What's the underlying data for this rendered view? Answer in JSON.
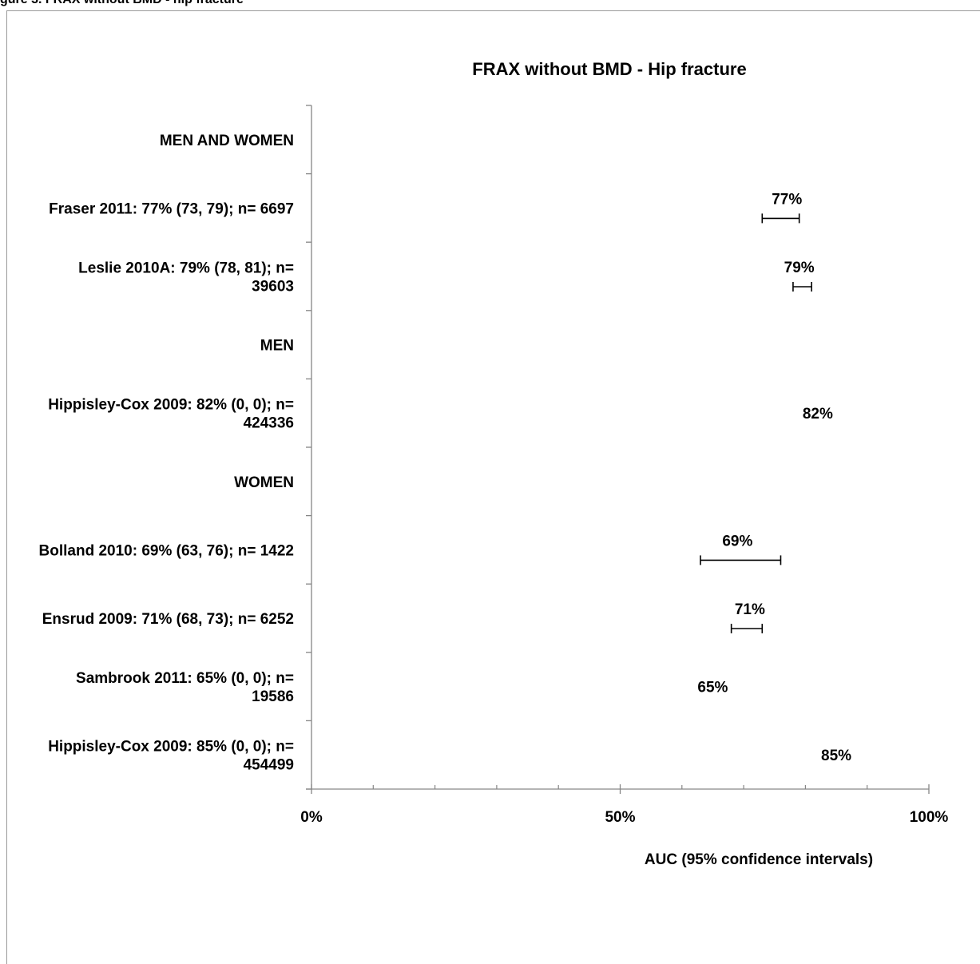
{
  "page_header": "gure 3.    FRAX without BMD - hip fracture",
  "chart_data": {
    "type": "forest",
    "title": "FRAX without BMD - Hip fracture",
    "xlabel": "AUC (95% confidence intervals)",
    "ylabel": "",
    "xlim": [
      0,
      100
    ],
    "x_ticks": [
      {
        "value": 0,
        "label": "0%"
      },
      {
        "value": 50,
        "label": "50%"
      },
      {
        "value": 100,
        "label": "100%"
      }
    ],
    "x_minor_ticks": [
      10,
      20,
      30,
      40,
      60,
      70,
      80,
      90
    ],
    "grid": false,
    "rows": [
      {
        "kind": "group",
        "lines": [
          "MEN AND WOMEN"
        ]
      },
      {
        "kind": "study",
        "lines": [
          "Fraser 2011: 77% (73, 79); n= 6697"
        ],
        "estimate": 77,
        "lower": 73,
        "upper": 79,
        "value_label": "77%"
      },
      {
        "kind": "study",
        "lines": [
          "Leslie 2010A: 79% (78, 81); n=",
          "39603"
        ],
        "estimate": 79,
        "lower": 78,
        "upper": 81,
        "value_label": "79%"
      },
      {
        "kind": "group",
        "lines": [
          "MEN"
        ]
      },
      {
        "kind": "study",
        "lines": [
          "Hippisley-Cox 2009: 82% (0, 0); n=",
          "424336"
        ],
        "estimate": 82,
        "lower": null,
        "upper": null,
        "value_label": "82%"
      },
      {
        "kind": "group",
        "lines": [
          "WOMEN"
        ]
      },
      {
        "kind": "study",
        "lines": [
          "Bolland 2010: 69% (63, 76); n= 1422"
        ],
        "estimate": 69,
        "lower": 63,
        "upper": 76,
        "value_label": "69%"
      },
      {
        "kind": "study",
        "lines": [
          "Ensrud 2009: 71% (68, 73); n= 6252"
        ],
        "estimate": 71,
        "lower": 68,
        "upper": 73,
        "value_label": "71%"
      },
      {
        "kind": "study",
        "lines": [
          "Sambrook 2011: 65% (0, 0); n=",
          "19586"
        ],
        "estimate": 65,
        "lower": null,
        "upper": null,
        "value_label": "65%"
      },
      {
        "kind": "study",
        "lines": [
          "Hippisley-Cox 2009: 85% (0, 0); n=",
          "454499"
        ],
        "estimate": 85,
        "lower": null,
        "upper": null,
        "value_label": "85%"
      }
    ]
  }
}
